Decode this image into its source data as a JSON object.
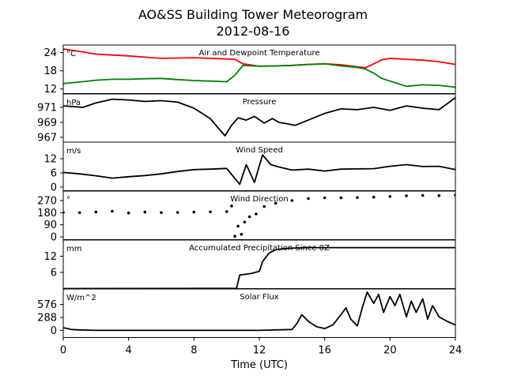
{
  "figure": {
    "title": "AO&SS Building Tower Meteorogram",
    "subtitle": "2012-08-16",
    "xlabel": "Time (UTC)",
    "x_ticks": [
      "0",
      "4",
      "8",
      "12",
      "16",
      "20",
      "24"
    ]
  },
  "chart_data": [
    {
      "type": "line",
      "title": "Air and Dewpoint Temperature",
      "unit": "°C",
      "x_range": [
        0,
        24
      ],
      "ylim": [
        10.5,
        26.5
      ],
      "y_ticks": [
        12,
        18,
        24
      ],
      "y_tick_labels": [
        "12",
        "18",
        "24"
      ],
      "series": [
        {
          "color": "#ff0000",
          "x": [
            0,
            1,
            2,
            3,
            4,
            5,
            6,
            7,
            8,
            9,
            10,
            10.5,
            11,
            12,
            13,
            14,
            15,
            16,
            17,
            18,
            18.5,
            19,
            19.5,
            20,
            21,
            22,
            23,
            24
          ],
          "y": [
            25.2,
            24.4,
            23.5,
            23.2,
            22.9,
            22.5,
            22.1,
            22.2,
            22.3,
            22.1,
            21.9,
            21.8,
            20.3,
            19.5,
            19.6,
            19.8,
            20.1,
            20.3,
            20.0,
            19.3,
            19.0,
            20.3,
            21.6,
            22.1,
            21.8,
            21.5,
            21.0,
            20.1
          ]
        },
        {
          "color": "#008000",
          "x": [
            0,
            1,
            2,
            3,
            4,
            5,
            6,
            7,
            8,
            9,
            10,
            10.5,
            11,
            12,
            13,
            14,
            15,
            16,
            17,
            18,
            18.5,
            19,
            19.5,
            20,
            21,
            22,
            23,
            24
          ],
          "y": [
            13.8,
            14.3,
            14.9,
            15.2,
            15.2,
            15.4,
            15.5,
            15.1,
            14.8,
            14.6,
            14.4,
            16.5,
            19.8,
            19.5,
            19.6,
            19.8,
            20.1,
            20.3,
            19.6,
            19.1,
            18.6,
            17.2,
            15.5,
            14.6,
            12.9,
            13.4,
            13.2,
            12.6
          ]
        }
      ]
    },
    {
      "type": "line",
      "title": "Pressure",
      "unit": "hPa",
      "x_range": [
        0,
        24
      ],
      "ylim": [
        966.3,
        972.8
      ],
      "y_ticks": [
        967,
        969,
        971
      ],
      "y_tick_labels": [
        "967",
        "969",
        "971"
      ],
      "series": [
        {
          "color": "#000000",
          "x": [
            0,
            0.7,
            1.2,
            2,
            3,
            4,
            5,
            6,
            7,
            8,
            9,
            9.5,
            9.9,
            10.3,
            10.7,
            11.2,
            11.7,
            12.3,
            12.8,
            13.2,
            13.7,
            14.2,
            15,
            16,
            17,
            18,
            19,
            20,
            21,
            22,
            23,
            23.5,
            24
          ],
          "y": [
            971.2,
            971.1,
            971.0,
            971.6,
            972.1,
            972.0,
            971.8,
            971.9,
            971.7,
            970.9,
            969.5,
            968.2,
            967.2,
            968.6,
            969.6,
            969.3,
            969.8,
            968.9,
            969.5,
            969.0,
            968.8,
            968.6,
            969.3,
            970.2,
            970.8,
            970.7,
            971.0,
            970.6,
            971.2,
            970.9,
            970.7,
            971.5,
            972.3
          ]
        }
      ]
    },
    {
      "type": "line",
      "title": "Wind Speed",
      "unit": "m/s",
      "x_range": [
        0,
        24
      ],
      "ylim": [
        -1.5,
        19
      ],
      "y_ticks": [
        0,
        6,
        12
      ],
      "y_tick_labels": [
        "0",
        "6",
        "12"
      ],
      "series": [
        {
          "color": "#000000",
          "x": [
            0,
            1,
            2,
            3,
            4,
            5,
            6,
            7,
            8,
            9,
            10,
            10.8,
            11.2,
            11.7,
            12.2,
            12.7,
            13.2,
            14,
            15,
            16,
            17,
            18,
            19,
            20,
            21,
            22,
            23,
            24
          ],
          "y": [
            6.2,
            5.6,
            4.8,
            3.8,
            4.4,
            4.9,
            5.6,
            6.6,
            7.4,
            7.6,
            7.9,
            1.2,
            9.5,
            2.0,
            13.6,
            9.5,
            8.5,
            7.2,
            7.6,
            6.8,
            7.6,
            7.7,
            7.8,
            8.8,
            9.5,
            8.7,
            8.8,
            7.4
          ]
        }
      ]
    },
    {
      "type": "scatter",
      "title": "Wind Direction",
      "unit": "°",
      "x_range": [
        0,
        24
      ],
      "ylim": [
        -20,
        340
      ],
      "y_ticks": [
        0,
        90,
        180,
        270
      ],
      "y_tick_labels": [
        "0",
        "90",
        "180",
        "270"
      ],
      "series": [
        {
          "color": "#000000",
          "x": [
            0,
            1,
            2,
            3,
            4,
            5,
            6,
            7,
            8,
            9,
            10,
            10.3,
            10.5,
            10.7,
            10.9,
            11.1,
            11.4,
            11.8,
            12.3,
            13,
            14,
            15,
            16,
            17,
            18,
            19,
            20,
            21,
            22,
            23,
            24
          ],
          "y": [
            182,
            180,
            184,
            190,
            178,
            184,
            180,
            182,
            184,
            186,
            188,
            230,
            5,
            80,
            20,
            110,
            150,
            170,
            225,
            250,
            270,
            285,
            290,
            290,
            292,
            295,
            300,
            305,
            308,
            306,
            310
          ]
        }
      ]
    },
    {
      "type": "line",
      "title": "Accumulated Precipitation Since 0Z",
      "unit": "mm",
      "x_range": [
        0,
        24
      ],
      "ylim": [
        0,
        18
      ],
      "y_ticks": [
        6,
        12
      ],
      "y_tick_labels": [
        "6",
        "12"
      ],
      "series": [
        {
          "color": "#000000",
          "x": [
            0,
            10.6,
            10.8,
            11.5,
            12.0,
            12.2,
            12.6,
            13.0,
            13.5,
            14.0,
            15.0,
            24
          ],
          "y": [
            0,
            0.1,
            5.0,
            5.6,
            6.4,
            10.0,
            13.2,
            14.4,
            14.8,
            15.0,
            15.2,
            15.2
          ]
        }
      ]
    },
    {
      "type": "line",
      "title": "Solar Flux",
      "unit": "W/m^2",
      "x_range": [
        0,
        24
      ],
      "ylim": [
        -160,
        920
      ],
      "y_ticks": [
        0,
        288,
        576
      ],
      "y_tick_labels": [
        "0",
        "288",
        "576"
      ],
      "series": [
        {
          "color": "#000000",
          "x": [
            0,
            0.5,
            1,
            2,
            4,
            6,
            8,
            10,
            12,
            14,
            14.3,
            14.6,
            15,
            15.5,
            16,
            16.5,
            17,
            17.3,
            17.6,
            18,
            18.3,
            18.6,
            19,
            19.3,
            19.6,
            20,
            20.3,
            20.6,
            21,
            21.3,
            21.6,
            22,
            22.3,
            22.6,
            23,
            23.5,
            24
          ],
          "y": [
            60,
            20,
            10,
            0,
            0,
            0,
            0,
            0,
            0,
            20,
            150,
            350,
            200,
            80,
            40,
            120,
            350,
            500,
            250,
            100,
            500,
            850,
            600,
            800,
            400,
            750,
            550,
            800,
            300,
            650,
            400,
            700,
            250,
            550,
            300,
            200,
            120
          ]
        }
      ]
    }
  ]
}
